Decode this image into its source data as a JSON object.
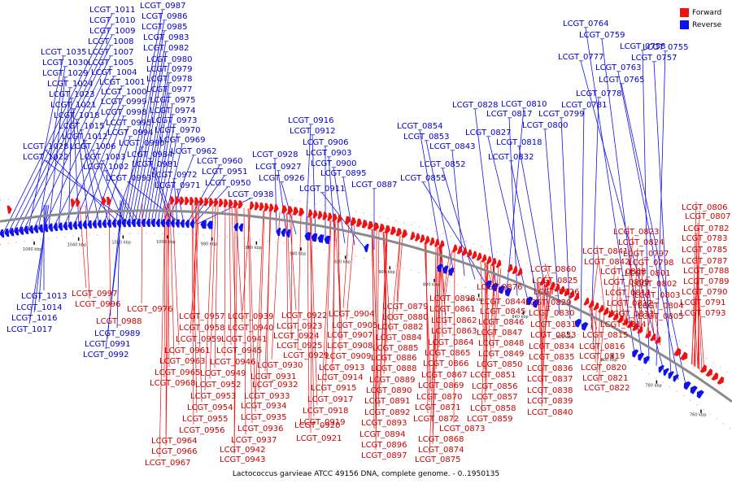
{
  "colors": {
    "forward": "#ee1111",
    "reverse": "#1111ee",
    "backbone": "#8a8a8a"
  },
  "legend": [
    {
      "label": "Forward",
      "color": "#ee1111"
    },
    {
      "label": "Reverse",
      "color": "#1111ee"
    }
  ],
  "caption": "Lactococcus garvieae ATCC 49156 DNA, complete genome. - 0..1950135",
  "ticks": [
    "760 kbp",
    "780 kbp",
    "800 kbp",
    "820 kbp",
    "840 kbp",
    "860 kbp",
    "880 kbp",
    "900 kbp",
    "920 kbp",
    "940 kbp",
    "960 kbp",
    "980 kbp",
    "1000 kbp",
    "1020 kbp",
    "1040 kbp",
    "1060 kbp"
  ],
  "reverse_labels": [
    "LCGT_1011",
    "LCGT_1010",
    "LCGT_1009",
    "LCGT_1008",
    "LCGT_1007",
    "LCGT_1035",
    "LCGT_1005",
    "LCGT_1030",
    "LCGT_1004",
    "LCGT_1029",
    "LCGT_1001",
    "LCGT_1024",
    "LCGT_1000",
    "LCGT_1023",
    "LCGT_0999",
    "LCGT_1021",
    "LCGT_0998",
    "LCGT_1018",
    "LCGT_0995",
    "LCGT_1015",
    "LCGT_0994",
    "LCGT_1012",
    "LCGT_0990",
    "LCGT_1028",
    "LCGT_1006",
    "LCGT_1022",
    "LCGT_1003",
    "LCGT_1002",
    "LCGT_0987",
    "LCGT_0986",
    "LCGT_0985",
    "LCGT_0983",
    "LCGT_0982",
    "LCGT_0980",
    "LCGT_0979",
    "LCGT_0978",
    "LCGT_0977",
    "LCGT_0975",
    "LCGT_0974",
    "LCGT_0973",
    "LCGT_0970",
    "LCGT_0969",
    "LCGT_0962",
    "LCGT_0984",
    "LCGT_0981",
    "LCGT_0972",
    "LCGT_0993",
    "LCGT_0971",
    "LCGT_0960",
    "LCGT_0951",
    "LCGT_0950",
    "LCGT_0938",
    "LCGT_0928",
    "LCGT_0927",
    "LCGT_0926",
    "LCGT_0916",
    "LCGT_0912",
    "LCGT_0906",
    "LCGT_0903",
    "LCGT_0900",
    "LCGT_0895",
    "LCGT_0911",
    "LCGT_0887",
    "LCGT_0854",
    "LCGT_0853",
    "LCGT_0843",
    "LCGT_0852",
    "LCGT_0855",
    "LCGT_0828",
    "LCGT_0810",
    "LCGT_0817",
    "LCGT_0827",
    "LCGT_0832",
    "LCGT_0818",
    "LCGT_0800",
    "LCGT_0799",
    "LCGT_0781",
    "LCGT_0778",
    "LCGT_0764",
    "LCGT_0759",
    "LCGT_0758",
    "LCGT_0755",
    "LCGT_0777",
    "LCGT_0757",
    "LCGT_0763",
    "LCGT_0765",
    "LCGT_1013",
    "LCGT_1014",
    "LCGT_1016",
    "LCGT_1017",
    "LCGT_0989",
    "LCGT_0991",
    "LCGT_0992"
  ],
  "forward_labels": [
    "LCGT_0997",
    "LCGT_0996",
    "LCGT_0988",
    "LCGT_0976",
    "LCGT_0957",
    "LCGT_0958",
    "LCGT_0959",
    "LCGT_0961",
    "LCGT_0963",
    "LCGT_0965",
    "LCGT_0968",
    "LCGT_0949",
    "LCGT_0952",
    "LCGT_0953",
    "LCGT_0954",
    "LCGT_0955",
    "LCGT_0956",
    "LCGT_0964",
    "LCGT_0966",
    "LCGT_0967",
    "LCGT_0939",
    "LCGT_0940",
    "LCGT_0941",
    "LCGT_0945",
    "LCGT_0946",
    "LCGT_0932",
    "LCGT_0933",
    "LCGT_0934",
    "LCGT_0935",
    "LCGT_0936",
    "LCGT_0937",
    "LCGT_0942",
    "LCGT_0943",
    "LCGT_0931",
    "LCGT_0930",
    "LCGT_0922",
    "LCGT_0923",
    "LCGT_0924",
    "LCGT_0925",
    "LCGT_0929",
    "LCGT_0904",
    "LCGT_0905",
    "LCGT_0907",
    "LCGT_0908",
    "LCGT_0909",
    "LCGT_0913",
    "LCGT_0914",
    "LCGT_0915",
    "LCGT_0917",
    "LCGT_0918",
    "LCGT_0919",
    "LCGT_0920",
    "LCGT_0921",
    "LCGT_0879",
    "LCGT_0880",
    "LCGT_0882",
    "LCGT_0884",
    "LCGT_0885",
    "LCGT_0886",
    "LCGT_0888",
    "LCGT_0889",
    "LCGT_0890",
    "LCGT_0891",
    "LCGT_0892",
    "LCGT_0893",
    "LCGT_0894",
    "LCGT_0896",
    "LCGT_0897",
    "LCGT_0898",
    "LCGT_0861",
    "LCGT_0862",
    "LCGT_0863",
    "LCGT_0864",
    "LCGT_0865",
    "LCGT_0866",
    "LCGT_0867",
    "LCGT_0869",
    "LCGT_0870",
    "LCGT_0871",
    "LCGT_0872",
    "LCGT_0873",
    "LCGT_0868",
    "LCGT_0874",
    "LCGT_0875",
    "LCGT_0876",
    "LCGT_0844",
    "LCGT_0845",
    "LCGT_0846",
    "LCGT_0847",
    "LCGT_0848",
    "LCGT_0849",
    "LCGT_0850",
    "LCGT_0851",
    "LCGT_0856",
    "LCGT_0857",
    "LCGT_0858",
    "LCGT_0859",
    "LCGT_0860",
    "LCGT_0825",
    "LCGT_0826",
    "LCGT_0829",
    "LCGT_0830",
    "LCGT_0831",
    "LCGT_0833",
    "LCGT_0834",
    "LCGT_0835",
    "LCGT_0836",
    "LCGT_0837",
    "LCGT_0838",
    "LCGT_0839",
    "LCGT_0840",
    "LCGT_0841",
    "LCGT_0842",
    "LCGT_0808",
    "LCGT_0809",
    "LCGT_0811",
    "LCGT_0812",
    "LCGT_0813",
    "LCGT_0814",
    "LCGT_0815",
    "LCGT_0816",
    "LCGT_0819",
    "LCGT_0820",
    "LCGT_0821",
    "LCGT_0822",
    "LCGT_0823",
    "LCGT_0824",
    "LCGT_0797",
    "LCGT_0798",
    "LCGT_0801",
    "LCGT_0802",
    "LCGT_0803",
    "LCGT_0804",
    "LCGT_0805",
    "LCGT_0806",
    "LCGT_0807",
    "LCGT_0782",
    "LCGT_0783",
    "LCGT_0785",
    "LCGT_0787",
    "LCGT_0788",
    "LCGT_0789",
    "LCGT_0790",
    "LCGT_0791",
    "LCGT_0793",
    "LCGT_0794",
    "LCGT_0795"
  ]
}
